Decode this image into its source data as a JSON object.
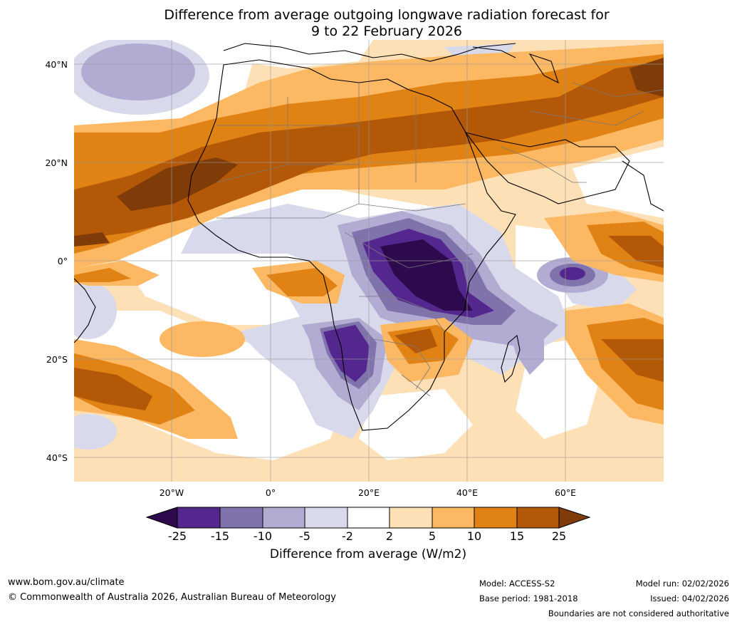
{
  "title_line1": "Difference from average outgoing longwave radiation forecast for",
  "title_line2": "9 to 22 February 2026",
  "lat_labels": [
    "40°N",
    "20°N",
    "0°",
    "20°S",
    "40°S"
  ],
  "lon_labels": [
    "20°W",
    "0°",
    "20°E",
    "40°E",
    "60°E"
  ],
  "colorbar": {
    "ticks": [
      "-25",
      "-15",
      "-10",
      "-5",
      "-2",
      "2",
      "5",
      "10",
      "15",
      "25"
    ],
    "label": "Difference from average (W/m2)",
    "colors": {
      "below_min": "#2d0a4e",
      "c1": "#54278f",
      "c2": "#8073ac",
      "c3": "#b2abd2",
      "c4": "#d8daeb",
      "c5": "#ffffff",
      "c6": "#fee0b6",
      "c7": "#fdb863",
      "c8": "#e08214",
      "c9": "#b35806",
      "above_max": "#7f3b08"
    }
  },
  "footer": {
    "website": "www.bom.gov.au/climate",
    "copyright": "© Commonwealth of Australia 2026, Australian Bureau of Meteorology",
    "model": "Model: ACCESS-S2",
    "base_period": "Base period: 1981-2018",
    "model_run": "Model run: 02/02/2026",
    "issued": "Issued: 04/02/2026",
    "boundaries_note": "Boundaries are not considered authoritative"
  }
}
